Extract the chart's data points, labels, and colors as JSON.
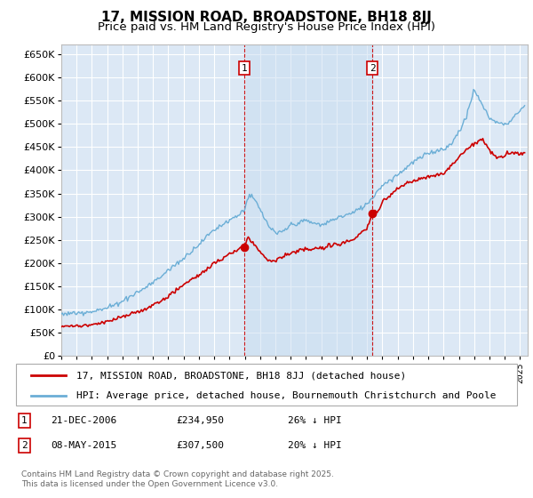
{
  "title": "17, MISSION ROAD, BROADSTONE, BH18 8JJ",
  "subtitle": "Price paid vs. HM Land Registry's House Price Index (HPI)",
  "yticks": [
    0,
    50000,
    100000,
    150000,
    200000,
    250000,
    300000,
    350000,
    400000,
    450000,
    500000,
    550000,
    600000,
    650000
  ],
  "ylim": [
    0,
    670000
  ],
  "xlim_start": 1995.0,
  "xlim_end": 2025.5,
  "background_color": "#ffffff",
  "plot_bg_color": "#dce8f5",
  "grid_color": "#ffffff",
  "hpi_color": "#6baed6",
  "price_color": "#cc0000",
  "sale1_date": 2006.97,
  "sale1_price": 234950,
  "sale1_label": "1",
  "sale2_date": 2015.35,
  "sale2_price": 307500,
  "sale2_label": "2",
  "legend_entry1": "17, MISSION ROAD, BROADSTONE, BH18 8JJ (detached house)",
  "legend_entry2": "HPI: Average price, detached house, Bournemouth Christchurch and Poole",
  "footnote": "Contains HM Land Registry data © Crown copyright and database right 2025.\nThis data is licensed under the Open Government Licence v3.0.",
  "title_fontsize": 11,
  "subtitle_fontsize": 9.5,
  "hpi_anchors_x": [
    1995,
    1996,
    1997,
    1998,
    1999,
    2000,
    2001,
    2002,
    2003,
    2004,
    2005,
    2006,
    2006.5,
    2007,
    2007.3,
    2007.8,
    2008.5,
    2009,
    2009.5,
    2010,
    2011,
    2012,
    2013,
    2014,
    2015,
    2016,
    2017,
    2018,
    2019,
    2020,
    2020.5,
    2021,
    2021.5,
    2022,
    2022.3,
    2022.8,
    2023,
    2023.5,
    2024,
    2024.5,
    2025.2
  ],
  "hpi_anchors_y": [
    90000,
    93000,
    97000,
    105000,
    120000,
    140000,
    160000,
    185000,
    210000,
    240000,
    270000,
    295000,
    305000,
    320000,
    350000,
    330000,
    285000,
    265000,
    270000,
    285000,
    295000,
    285000,
    300000,
    310000,
    330000,
    370000,
    395000,
    420000,
    440000,
    450000,
    460000,
    490000,
    520000,
    580000,
    560000,
    530000,
    520000,
    510000,
    505000,
    520000,
    545000
  ],
  "price_anchors_x": [
    1995,
    1996,
    1997,
    1998,
    1999,
    2000,
    2001,
    2002,
    2003,
    2004,
    2005,
    2006,
    2006.5,
    2006.97,
    2007.2,
    2007.8,
    2008.5,
    2009,
    2009.5,
    2010,
    2011,
    2012,
    2013,
    2014,
    2015,
    2015.35,
    2015.8,
    2016,
    2017,
    2018,
    2019,
    2020,
    2021,
    2022,
    2022.5,
    2023,
    2023.5,
    2024,
    2024.5,
    2025.2
  ],
  "price_anchors_y": [
    65000,
    65000,
    68000,
    75000,
    85000,
    95000,
    110000,
    130000,
    155000,
    175000,
    200000,
    218000,
    228000,
    234950,
    255000,
    230000,
    205000,
    203000,
    210000,
    218000,
    225000,
    228000,
    235000,
    245000,
    270000,
    307500,
    310000,
    330000,
    360000,
    375000,
    385000,
    390000,
    425000,
    455000,
    465000,
    440000,
    425000,
    430000,
    435000,
    435000
  ]
}
